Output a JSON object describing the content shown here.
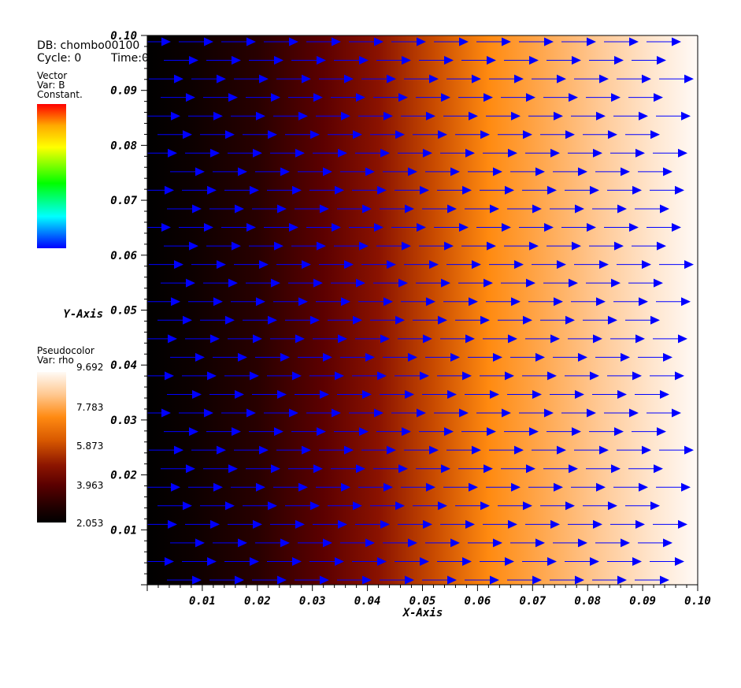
{
  "header": {
    "db": "DB: chombo00100",
    "cycle": "Cycle: 0",
    "time": "Time:0"
  },
  "vector_legend": {
    "title": "Vector",
    "var": "Var: B",
    "mode": "Constant."
  },
  "pseudocolor_legend": {
    "title": "Pseudocolor",
    "var": "Var: rho",
    "ticks": [
      "9.692",
      "7.783",
      "5.873",
      "3.963",
      "2.053"
    ],
    "min": 2.053,
    "max": 9.692
  },
  "colors": {
    "vector": "#0000ff",
    "axis": "#000000"
  },
  "chart_data": {
    "type": "heatmap",
    "field": "rho",
    "xlabel": "X-Axis",
    "ylabel": "Y-Axis",
    "xlim": [
      0.0,
      0.1
    ],
    "ylim": [
      0.0,
      0.1
    ],
    "xticks": [
      "0.01",
      "0.02",
      "0.03",
      "0.04",
      "0.05",
      "0.06",
      "0.07",
      "0.08",
      "0.09",
      "0.10"
    ],
    "yticks": [
      "0.01",
      "0.02",
      "0.03",
      "0.04",
      "0.05",
      "0.06",
      "0.07",
      "0.08",
      "0.09",
      "0.10"
    ],
    "rho_profile": {
      "x": [
        0.0,
        0.02,
        0.04,
        0.06,
        0.08,
        0.1
      ],
      "rho": [
        2.05,
        2.6,
        4.1,
        6.3,
        8.2,
        9.69
      ]
    },
    "vector_field": {
      "var": "B",
      "direction": "+x",
      "columns": 13,
      "rows": 30
    }
  }
}
